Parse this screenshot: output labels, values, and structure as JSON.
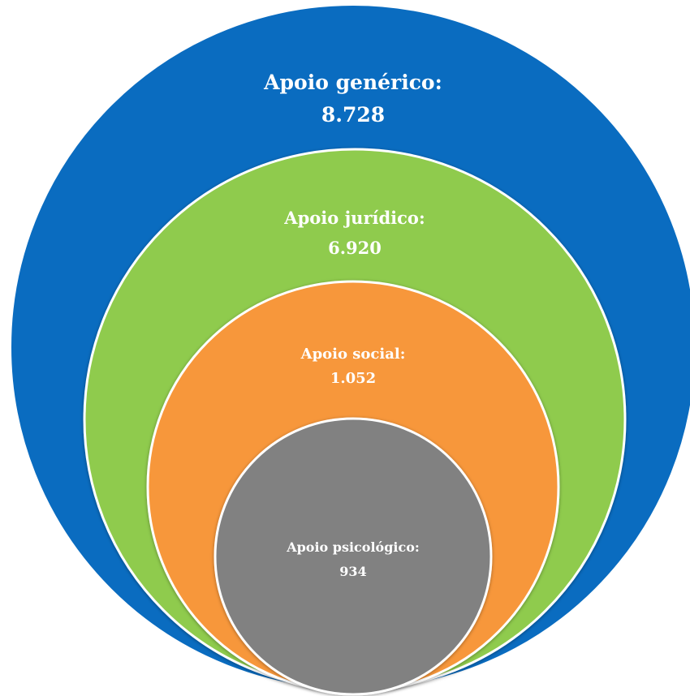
{
  "chart_data": {
    "type": "nested-circles",
    "series": [
      {
        "name": "Apoio genérico:",
        "value_label": "8.728",
        "value": 8728,
        "color": "#0a6cc0"
      },
      {
        "name": "Apoio jurídico:",
        "value_label": "6.920",
        "value": 6920,
        "color": "#8fcb4d"
      },
      {
        "name": "Apoio social:",
        "value_label": "1.052",
        "value": 1052,
        "color": "#f7973a"
      },
      {
        "name": "Apoio psicológico:",
        "value_label": "934",
        "value": 934,
        "color": "#818181"
      }
    ]
  }
}
